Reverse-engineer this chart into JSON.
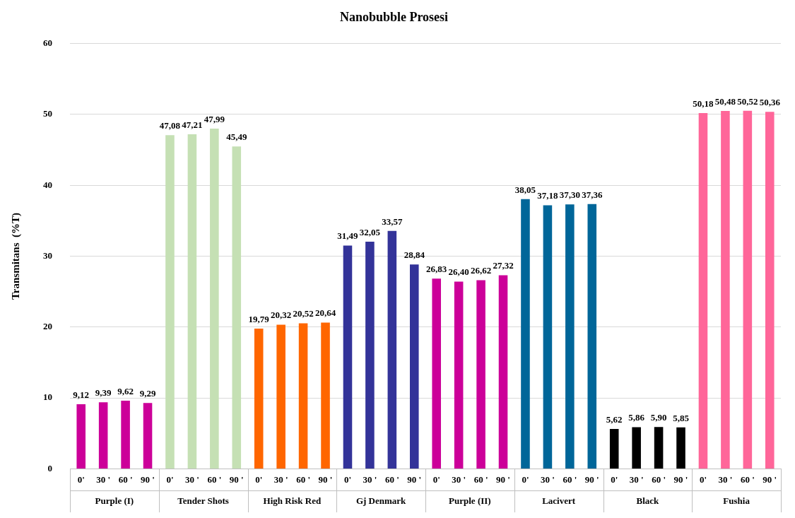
{
  "chart_data": {
    "type": "bar",
    "title": "Nanobubble Prosesi",
    "ylabel": "Transmitans  (%T)",
    "categories": [
      "0'",
      "30 '",
      "60 '",
      "90 '",
      "0'",
      "30 '",
      "60 '",
      "90 '",
      "0'",
      "30 '",
      "60 '",
      "90 '",
      "0'",
      "30 '",
      "60 '",
      "90 '",
      "0'",
      "30 '",
      "60 '",
      "90 '",
      "0'",
      "30 '",
      "60 '",
      "90 '",
      "0'",
      "30 '",
      "60 '",
      "90 '",
      "0'",
      "30 '",
      "60 '",
      "90 '"
    ],
    "values": [
      9.12,
      9.39,
      9.62,
      9.29,
      47.08,
      47.21,
      47.99,
      45.49,
      19.79,
      20.32,
      20.52,
      20.64,
      31.49,
      32.05,
      33.57,
      28.84,
      26.83,
      26.4,
      26.62,
      27.32,
      38.05,
      37.18,
      37.3,
      37.36,
      5.62,
      5.86,
      5.9,
      5.85,
      50.18,
      50.48,
      50.52,
      50.36
    ],
    "value_labels": [
      "9,12",
      "9,39",
      "9,62",
      "9,29",
      "47,08",
      "47,21",
      "47,99",
      "45,49",
      "19,79",
      "20,32",
      "20,52",
      "20,64",
      "31,49",
      "32,05",
      "33,57",
      "28,84",
      "26,83",
      "26,40",
      "26,62",
      "27,32",
      "38,05",
      "37,18",
      "37,30",
      "37,36",
      "5,62",
      "5,86",
      "5,90",
      "5,85",
      "50,18",
      "50,48",
      "50,52",
      "50,36"
    ],
    "colors": [
      "#cc0099",
      "#cc0099",
      "#cc0099",
      "#cc0099",
      "#c5e0b4",
      "#c5e0b4",
      "#c5e0b4",
      "#c5e0b4",
      "#ff6600",
      "#ff6600",
      "#ff6600",
      "#ff6600",
      "#333399",
      "#333399",
      "#333399",
      "#333399",
      "#cc0099",
      "#cc0099",
      "#cc0099",
      "#cc0099",
      "#006699",
      "#006699",
      "#006699",
      "#006699",
      "#000000",
      "#000000",
      "#000000",
      "#000000",
      "#ff6699",
      "#ff6699",
      "#ff6699",
      "#ff6699"
    ],
    "annotations": [
      "Purple (I)",
      "Tender Shots",
      "High Risk Red",
      "Gj Denmark",
      "Purple (II)",
      "Lacivert",
      "Black",
      "Fushia"
    ],
    "ylim": [
      0,
      60
    ],
    "yticks": [
      0,
      10,
      20,
      30,
      40,
      50,
      60
    ],
    "grid": "y",
    "legend": false
  }
}
